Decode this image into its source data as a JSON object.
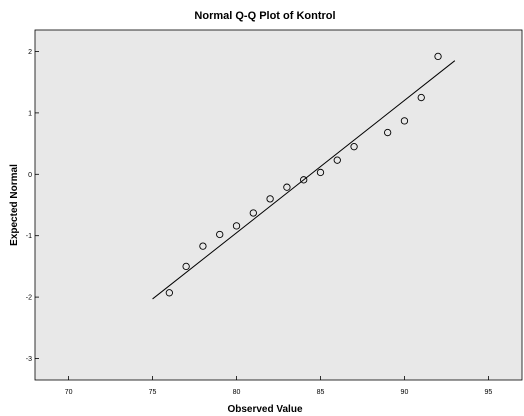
{
  "chart_data": {
    "type": "scatter",
    "title": "Normal Q-Q Plot of Kontrol",
    "xlabel": "Observed Value",
    "ylabel": "Expected Normal",
    "xlim": [
      68,
      97
    ],
    "ylim": [
      -3.35,
      2.35
    ],
    "x_ticks": [
      70,
      75,
      80,
      85,
      90,
      95
    ],
    "y_ticks": [
      2,
      1,
      0,
      -1,
      -2,
      -3
    ],
    "grid": false,
    "legend": "none",
    "points": [
      {
        "x": 76,
        "y": -1.93
      },
      {
        "x": 77,
        "y": -1.5
      },
      {
        "x": 78,
        "y": -1.17
      },
      {
        "x": 79,
        "y": -0.98
      },
      {
        "x": 80,
        "y": -0.84
      },
      {
        "x": 81,
        "y": -0.63
      },
      {
        "x": 82,
        "y": -0.4
      },
      {
        "x": 83,
        "y": -0.21
      },
      {
        "x": 84,
        "y": -0.09
      },
      {
        "x": 85,
        "y": 0.03
      },
      {
        "x": 86,
        "y": 0.23
      },
      {
        "x": 87,
        "y": 0.45
      },
      {
        "x": 89,
        "y": 0.68
      },
      {
        "x": 90,
        "y": 0.87
      },
      {
        "x": 91,
        "y": 1.25
      },
      {
        "x": 92,
        "y": 1.92
      }
    ],
    "reference_line": {
      "x": [
        75,
        93
      ],
      "y": [
        -2.03,
        1.85
      ]
    },
    "colors": {
      "plot_background": "#e8e8e8",
      "page_background": "#ffffff",
      "line": "#000000",
      "marker": "#000000"
    }
  }
}
